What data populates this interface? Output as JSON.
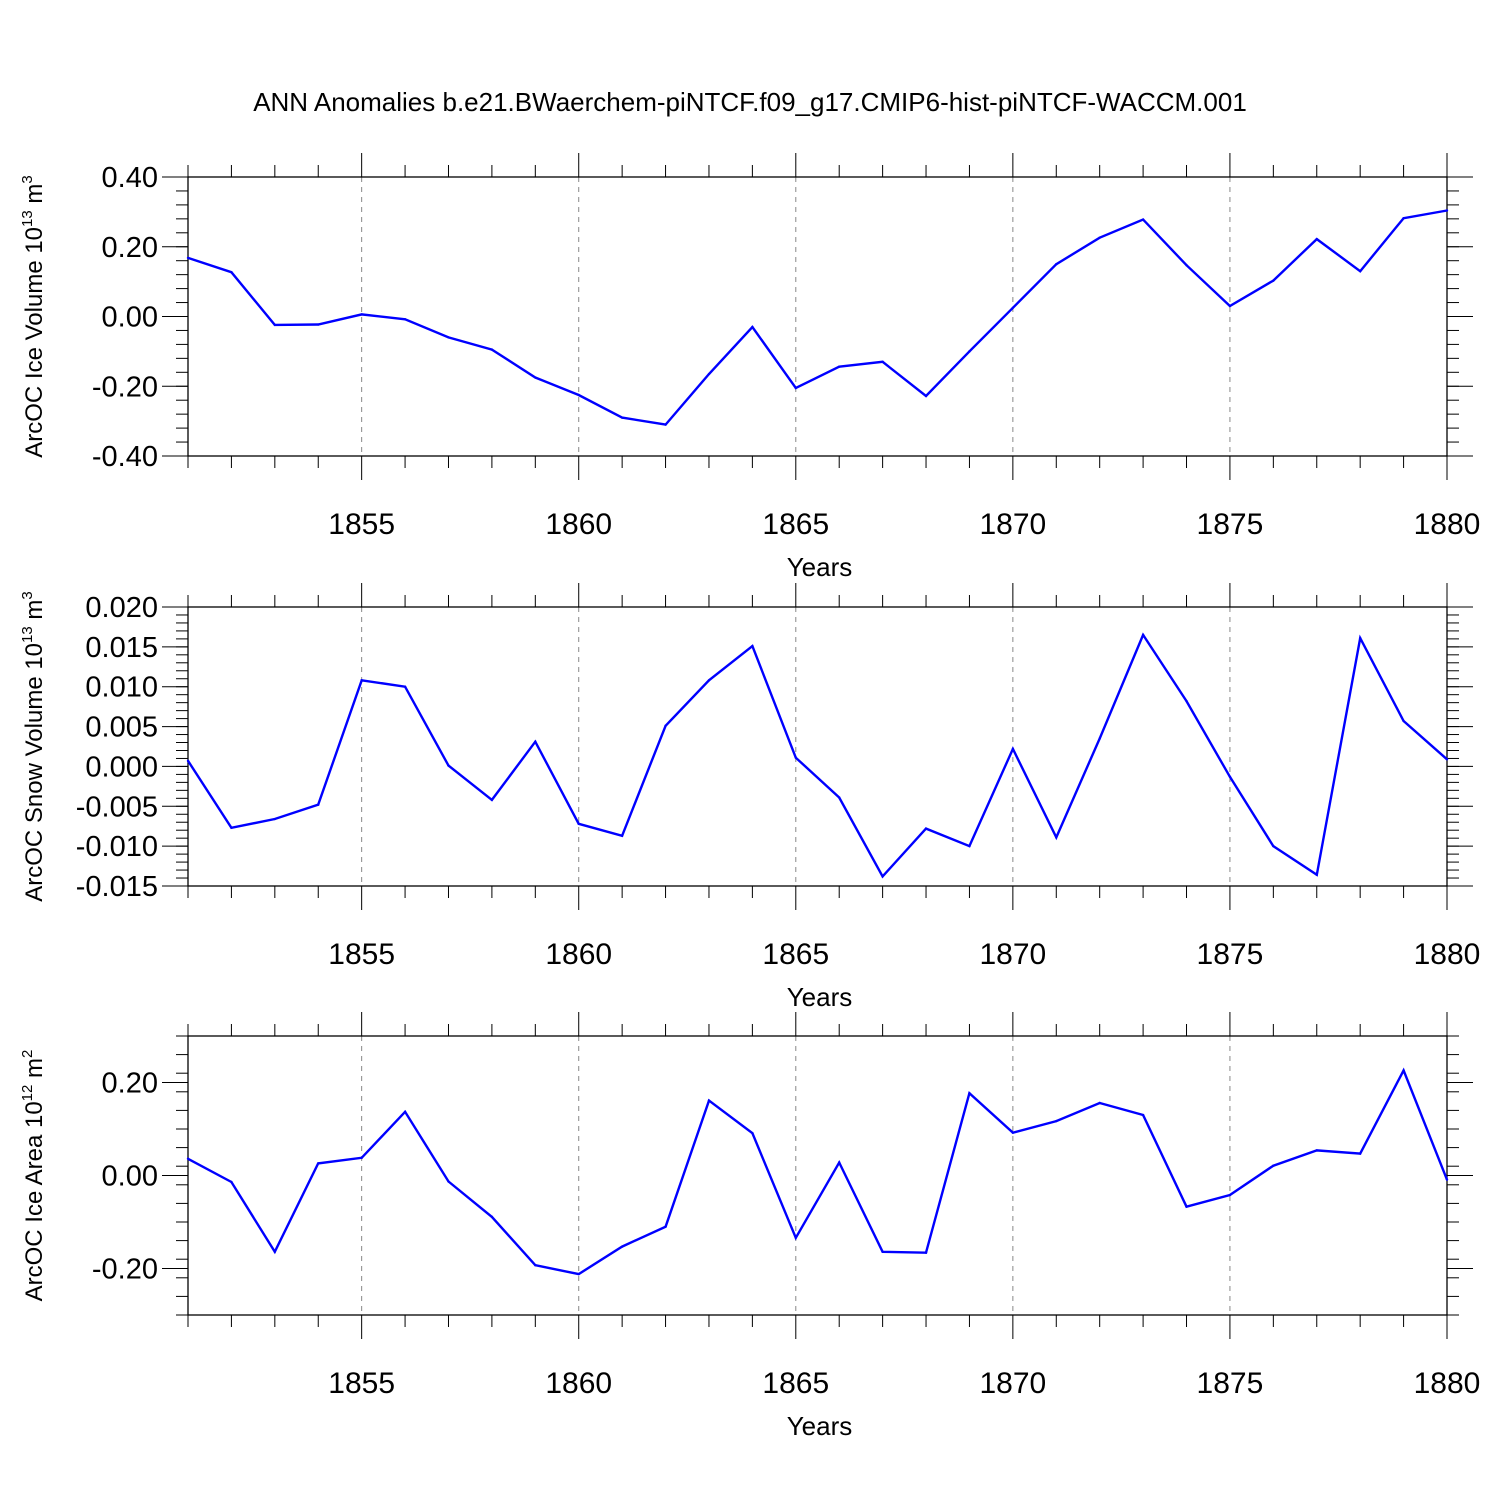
{
  "title": "ANN Anomalies b.e21.BWaerchem-piNTCF.f09_g17.CMIP6-hist-piNTCF-WACCM.001",
  "colors": {
    "line": "#0000ff",
    "axis": "#000000",
    "grid": "#888888"
  },
  "chart_data": [
    {
      "type": "line",
      "ylabel": {
        "text": "ArcOC Ice Volume 10",
        "exponent": "13",
        "units": " m",
        "units_exponent": "3"
      },
      "xlabel": "Years",
      "xlim": [
        1851,
        1880
      ],
      "ylim": [
        -0.4,
        0.4
      ],
      "yticks": [
        -0.4,
        -0.2,
        0.0,
        0.2,
        0.4
      ],
      "ytick_labels": [
        "-0.40",
        "-0.20",
        "0.00",
        "0.20",
        "0.40"
      ],
      "ytick_minor": 0.04,
      "xticks": [
        1855,
        1860,
        1865,
        1870,
        1875,
        1880
      ],
      "xtick_labels": [
        "1855",
        "1860",
        "1865",
        "1870",
        "1875",
        "1880"
      ],
      "grid": "vertical dashed at major x ticks",
      "x": [
        1851,
        1852,
        1853,
        1854,
        1855,
        1856,
        1857,
        1858,
        1859,
        1860,
        1861,
        1862,
        1863,
        1864,
        1865,
        1866,
        1867,
        1868,
        1869,
        1870,
        1871,
        1872,
        1873,
        1874,
        1875,
        1876,
        1877,
        1878,
        1879,
        1880
      ],
      "values": [
        0.168,
        0.127,
        -0.024,
        -0.023,
        0.006,
        -0.008,
        -0.06,
        -0.095,
        -0.175,
        -0.225,
        -0.29,
        -0.31,
        -0.165,
        -0.03,
        -0.205,
        -0.144,
        -0.13,
        -0.228,
        -0.1,
        0.025,
        0.15,
        0.226,
        0.278,
        0.147,
        0.03,
        0.103,
        0.222,
        0.13,
        0.282,
        0.304
      ]
    },
    {
      "type": "line",
      "ylabel": {
        "text": "ArcOC Snow Volume 10",
        "exponent": "13",
        "units": " m",
        "units_exponent": "3"
      },
      "xlabel": "Years",
      "xlim": [
        1851,
        1880
      ],
      "ylim": [
        -0.015,
        0.02
      ],
      "yticks": [
        -0.015,
        -0.01,
        -0.005,
        0.0,
        0.005,
        0.01,
        0.015,
        0.02
      ],
      "ytick_labels": [
        "-0.015",
        "-0.010",
        "-0.005",
        "0.000",
        "0.005",
        "0.010",
        "0.015",
        "0.020"
      ],
      "ytick_minor": 0.001,
      "xticks": [
        1855,
        1860,
        1865,
        1870,
        1875,
        1880
      ],
      "xtick_labels": [
        "1855",
        "1860",
        "1865",
        "1870",
        "1875",
        "1880"
      ],
      "grid": "vertical dashed at major x ticks",
      "x": [
        1851,
        1852,
        1853,
        1854,
        1855,
        1856,
        1857,
        1858,
        1859,
        1860,
        1861,
        1862,
        1863,
        1864,
        1865,
        1866,
        1867,
        1868,
        1869,
        1870,
        1871,
        1872,
        1873,
        1874,
        1875,
        1876,
        1877,
        1878,
        1879,
        1880
      ],
      "values": [
        0.0007,
        -0.0077,
        -0.0066,
        -0.0048,
        0.0108,
        0.01,
        0.0001,
        -0.0042,
        0.0031,
        -0.0072,
        -0.0087,
        0.0051,
        0.0108,
        0.0151,
        0.0011,
        -0.0039,
        -0.0138,
        -0.0078,
        -0.01,
        0.0022,
        -0.0089,
        0.0035,
        0.0165,
        0.0082,
        -0.0013,
        -0.01,
        -0.0136,
        0.0161,
        0.0057,
        0.0009
      ]
    },
    {
      "type": "line",
      "ylabel": {
        "text": "ArcOC Ice Area 10",
        "exponent": "12",
        "units": " m",
        "units_exponent": "2"
      },
      "xlabel": "Years",
      "xlim": [
        1851,
        1880
      ],
      "ylim": [
        -0.3,
        0.3
      ],
      "yticks": [
        -0.2,
        0.0,
        0.2
      ],
      "ytick_labels": [
        "-0.20",
        "0.00",
        "0.20"
      ],
      "ytick_minor": 0.04,
      "xticks": [
        1855,
        1860,
        1865,
        1870,
        1875,
        1880
      ],
      "xtick_labels": [
        "1855",
        "1860",
        "1865",
        "1870",
        "1875",
        "1880"
      ],
      "grid": "vertical dashed at major x ticks",
      "x": [
        1851,
        1852,
        1853,
        1854,
        1855,
        1856,
        1857,
        1858,
        1859,
        1860,
        1861,
        1862,
        1863,
        1864,
        1865,
        1866,
        1867,
        1868,
        1869,
        1870,
        1871,
        1872,
        1873,
        1874,
        1875,
        1876,
        1877,
        1878,
        1879,
        1880
      ],
      "values": [
        0.036,
        -0.014,
        -0.164,
        0.026,
        0.038,
        0.137,
        -0.013,
        -0.089,
        -0.193,
        -0.212,
        -0.153,
        -0.11,
        0.161,
        0.091,
        -0.134,
        0.028,
        -0.164,
        -0.166,
        0.177,
        0.092,
        0.117,
        0.156,
        0.13,
        -0.067,
        -0.042,
        0.021,
        0.054,
        0.047,
        0.226,
        -0.009
      ]
    }
  ]
}
